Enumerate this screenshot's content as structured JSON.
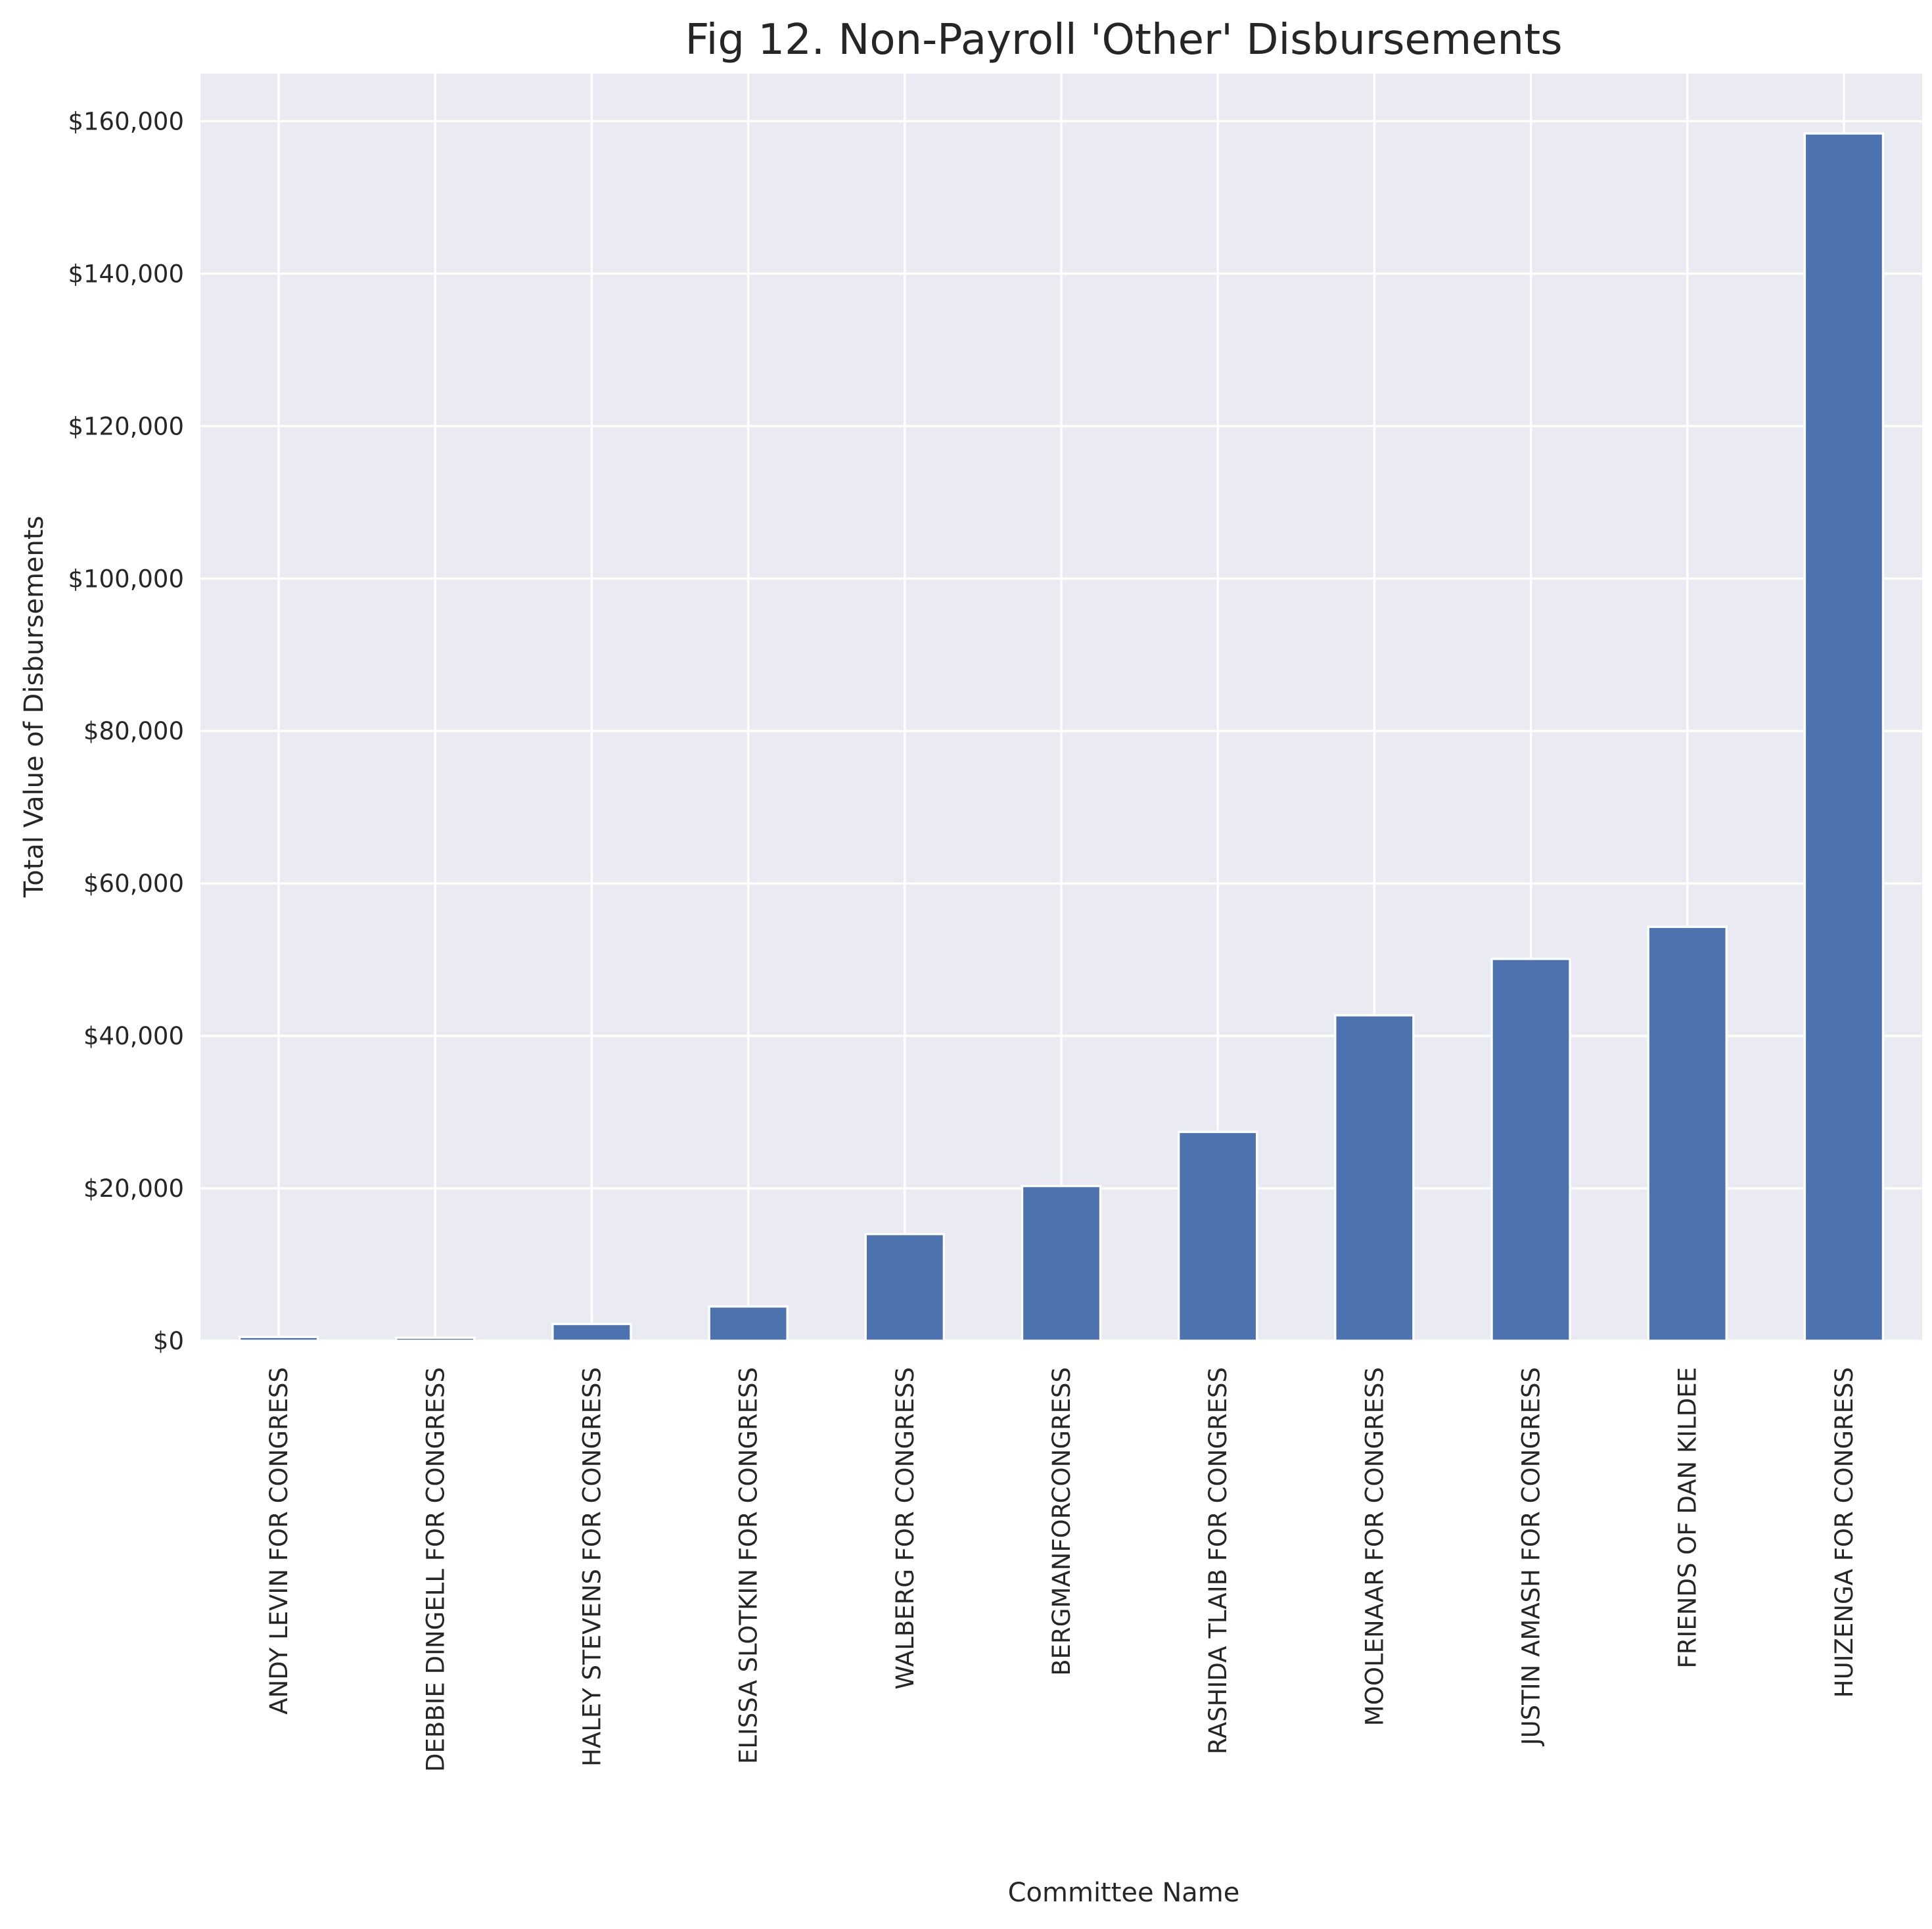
{
  "chart_data": {
    "type": "bar",
    "title": "Fig 12. Non-Payroll 'Other' Disbursements",
    "xlabel": "Committee Name",
    "ylabel": "Total Value of Disbursements",
    "categories": [
      "ANDY LEVIN FOR CONGRESS",
      "DEBBIE DINGELL FOR CONGRESS",
      "HALEY STEVENS FOR CONGRESS",
      "ELISSA SLOTKIN FOR CONGRESS",
      "WALBERG FOR CONGRESS",
      "BERGMANFORCONGRESS",
      "RASHIDA TLAIB FOR CONGRESS",
      "MOOLENAAR FOR CONGRESS",
      "JUSTIN AMASH FOR CONGRESS",
      "FRIENDS OF DAN KILDEE",
      "HUIZENGA FOR CONGRESS"
    ],
    "values": [
      500,
      400,
      2200,
      4500,
      14000,
      20300,
      27400,
      42700,
      50100,
      54300,
      158400
    ],
    "ylim": [
      0,
      166250
    ],
    "yticks": [
      0,
      20000,
      40000,
      60000,
      80000,
      100000,
      120000,
      140000,
      160000
    ],
    "ytick_labels": [
      "$0",
      "$20,000",
      "$40,000",
      "$60,000",
      "$80,000",
      "$100,000",
      "$120,000",
      "$140,000",
      "$160,000"
    ],
    "grid": true,
    "legend": "none",
    "colors": {
      "bar": "#4c72b0",
      "plot_background": "#eaeaf2",
      "grid": "#ffffff",
      "text": "#262626"
    }
  }
}
